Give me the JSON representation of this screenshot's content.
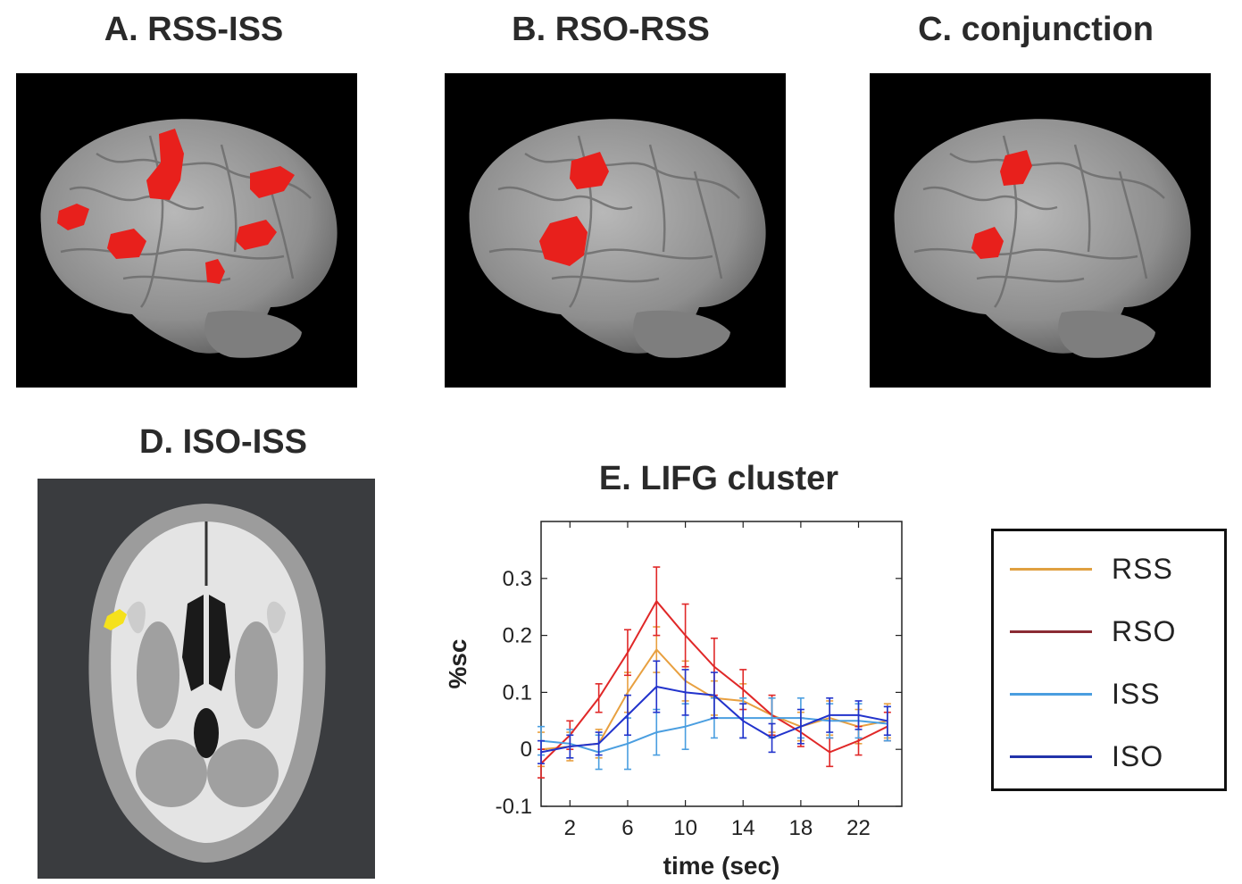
{
  "panels": {
    "a": {
      "title": "A. RSS-ISS"
    },
    "b": {
      "title": "B. RSO-RSS"
    },
    "c": {
      "title": "C. conjunction"
    },
    "d": {
      "title": "D. ISO-ISS"
    },
    "e": {
      "title": "E.  LIFG cluster"
    }
  },
  "colors": {
    "activation_red": "#e8201c",
    "activation_yellow": "#f5e11c",
    "brain_gray": "#9a9a9a",
    "panel_bg": "#000000",
    "slice_bg": "#3a3c3f"
  },
  "legend": {
    "items": [
      {
        "label": "RSS",
        "color": "#e0a040"
      },
      {
        "label": "RSO",
        "color": "#8b2b33"
      },
      {
        "label": "ISS",
        "color": "#4a9ee0"
      },
      {
        "label": "ISO",
        "color": "#2233aa"
      }
    ]
  },
  "chart_data": {
    "type": "line",
    "title": "E.  LIFG cluster",
    "xlabel": "time (sec)",
    "ylabel": "%sc",
    "xlim": [
      0,
      25
    ],
    "ylim": [
      -0.1,
      0.4
    ],
    "xticks": [
      2,
      6,
      10,
      14,
      18,
      22
    ],
    "xtick_labels": [
      "2",
      "6",
      "10",
      "14",
      "18",
      "22"
    ],
    "yticks": [
      -0.1,
      0,
      0.1,
      0.2,
      0.3
    ],
    "ytick_labels": [
      "-0.1",
      "0",
      "0.1",
      "0.2",
      "0.3"
    ],
    "grid": false,
    "x": [
      0,
      2,
      4,
      6,
      8,
      10,
      12,
      14,
      16,
      18,
      20,
      22,
      24
    ],
    "series": [
      {
        "name": "RSS",
        "color": "#e8a040",
        "values": [
          0.0,
          0.005,
          0.01,
          0.1,
          0.175,
          0.12,
          0.09,
          0.085,
          0.06,
          0.04,
          0.055,
          0.04,
          0.05
        ],
        "err": [
          0.03,
          0.025,
          0.025,
          0.035,
          0.04,
          0.035,
          0.03,
          0.03,
          0.03,
          0.025,
          0.03,
          0.03,
          0.03
        ]
      },
      {
        "name": "RSO",
        "color": "#e02828",
        "values": [
          -0.025,
          0.025,
          0.09,
          0.17,
          0.26,
          0.2,
          0.145,
          0.105,
          0.06,
          0.03,
          -0.005,
          0.015,
          0.04
        ],
        "err": [
          0.025,
          0.025,
          0.025,
          0.04,
          0.06,
          0.055,
          0.05,
          0.035,
          0.035,
          0.025,
          0.025,
          0.025,
          0.025
        ]
      },
      {
        "name": "ISS",
        "color": "#4a9ee0",
        "values": [
          0.015,
          0.01,
          -0.005,
          0.01,
          0.03,
          0.04,
          0.055,
          0.055,
          0.055,
          0.055,
          0.05,
          0.05,
          0.045
        ],
        "err": [
          0.025,
          0.025,
          0.03,
          0.045,
          0.04,
          0.04,
          0.035,
          0.035,
          0.035,
          0.035,
          0.03,
          0.03,
          0.03
        ]
      },
      {
        "name": "ISO",
        "color": "#2233cc",
        "values": [
          -0.005,
          0.005,
          0.01,
          0.06,
          0.11,
          0.1,
          0.095,
          0.05,
          0.02,
          0.04,
          0.06,
          0.06,
          0.05
        ],
        "err": [
          0.02,
          0.02,
          0.02,
          0.035,
          0.045,
          0.04,
          0.04,
          0.03,
          0.025,
          0.03,
          0.03,
          0.025,
          0.025
        ]
      }
    ]
  }
}
